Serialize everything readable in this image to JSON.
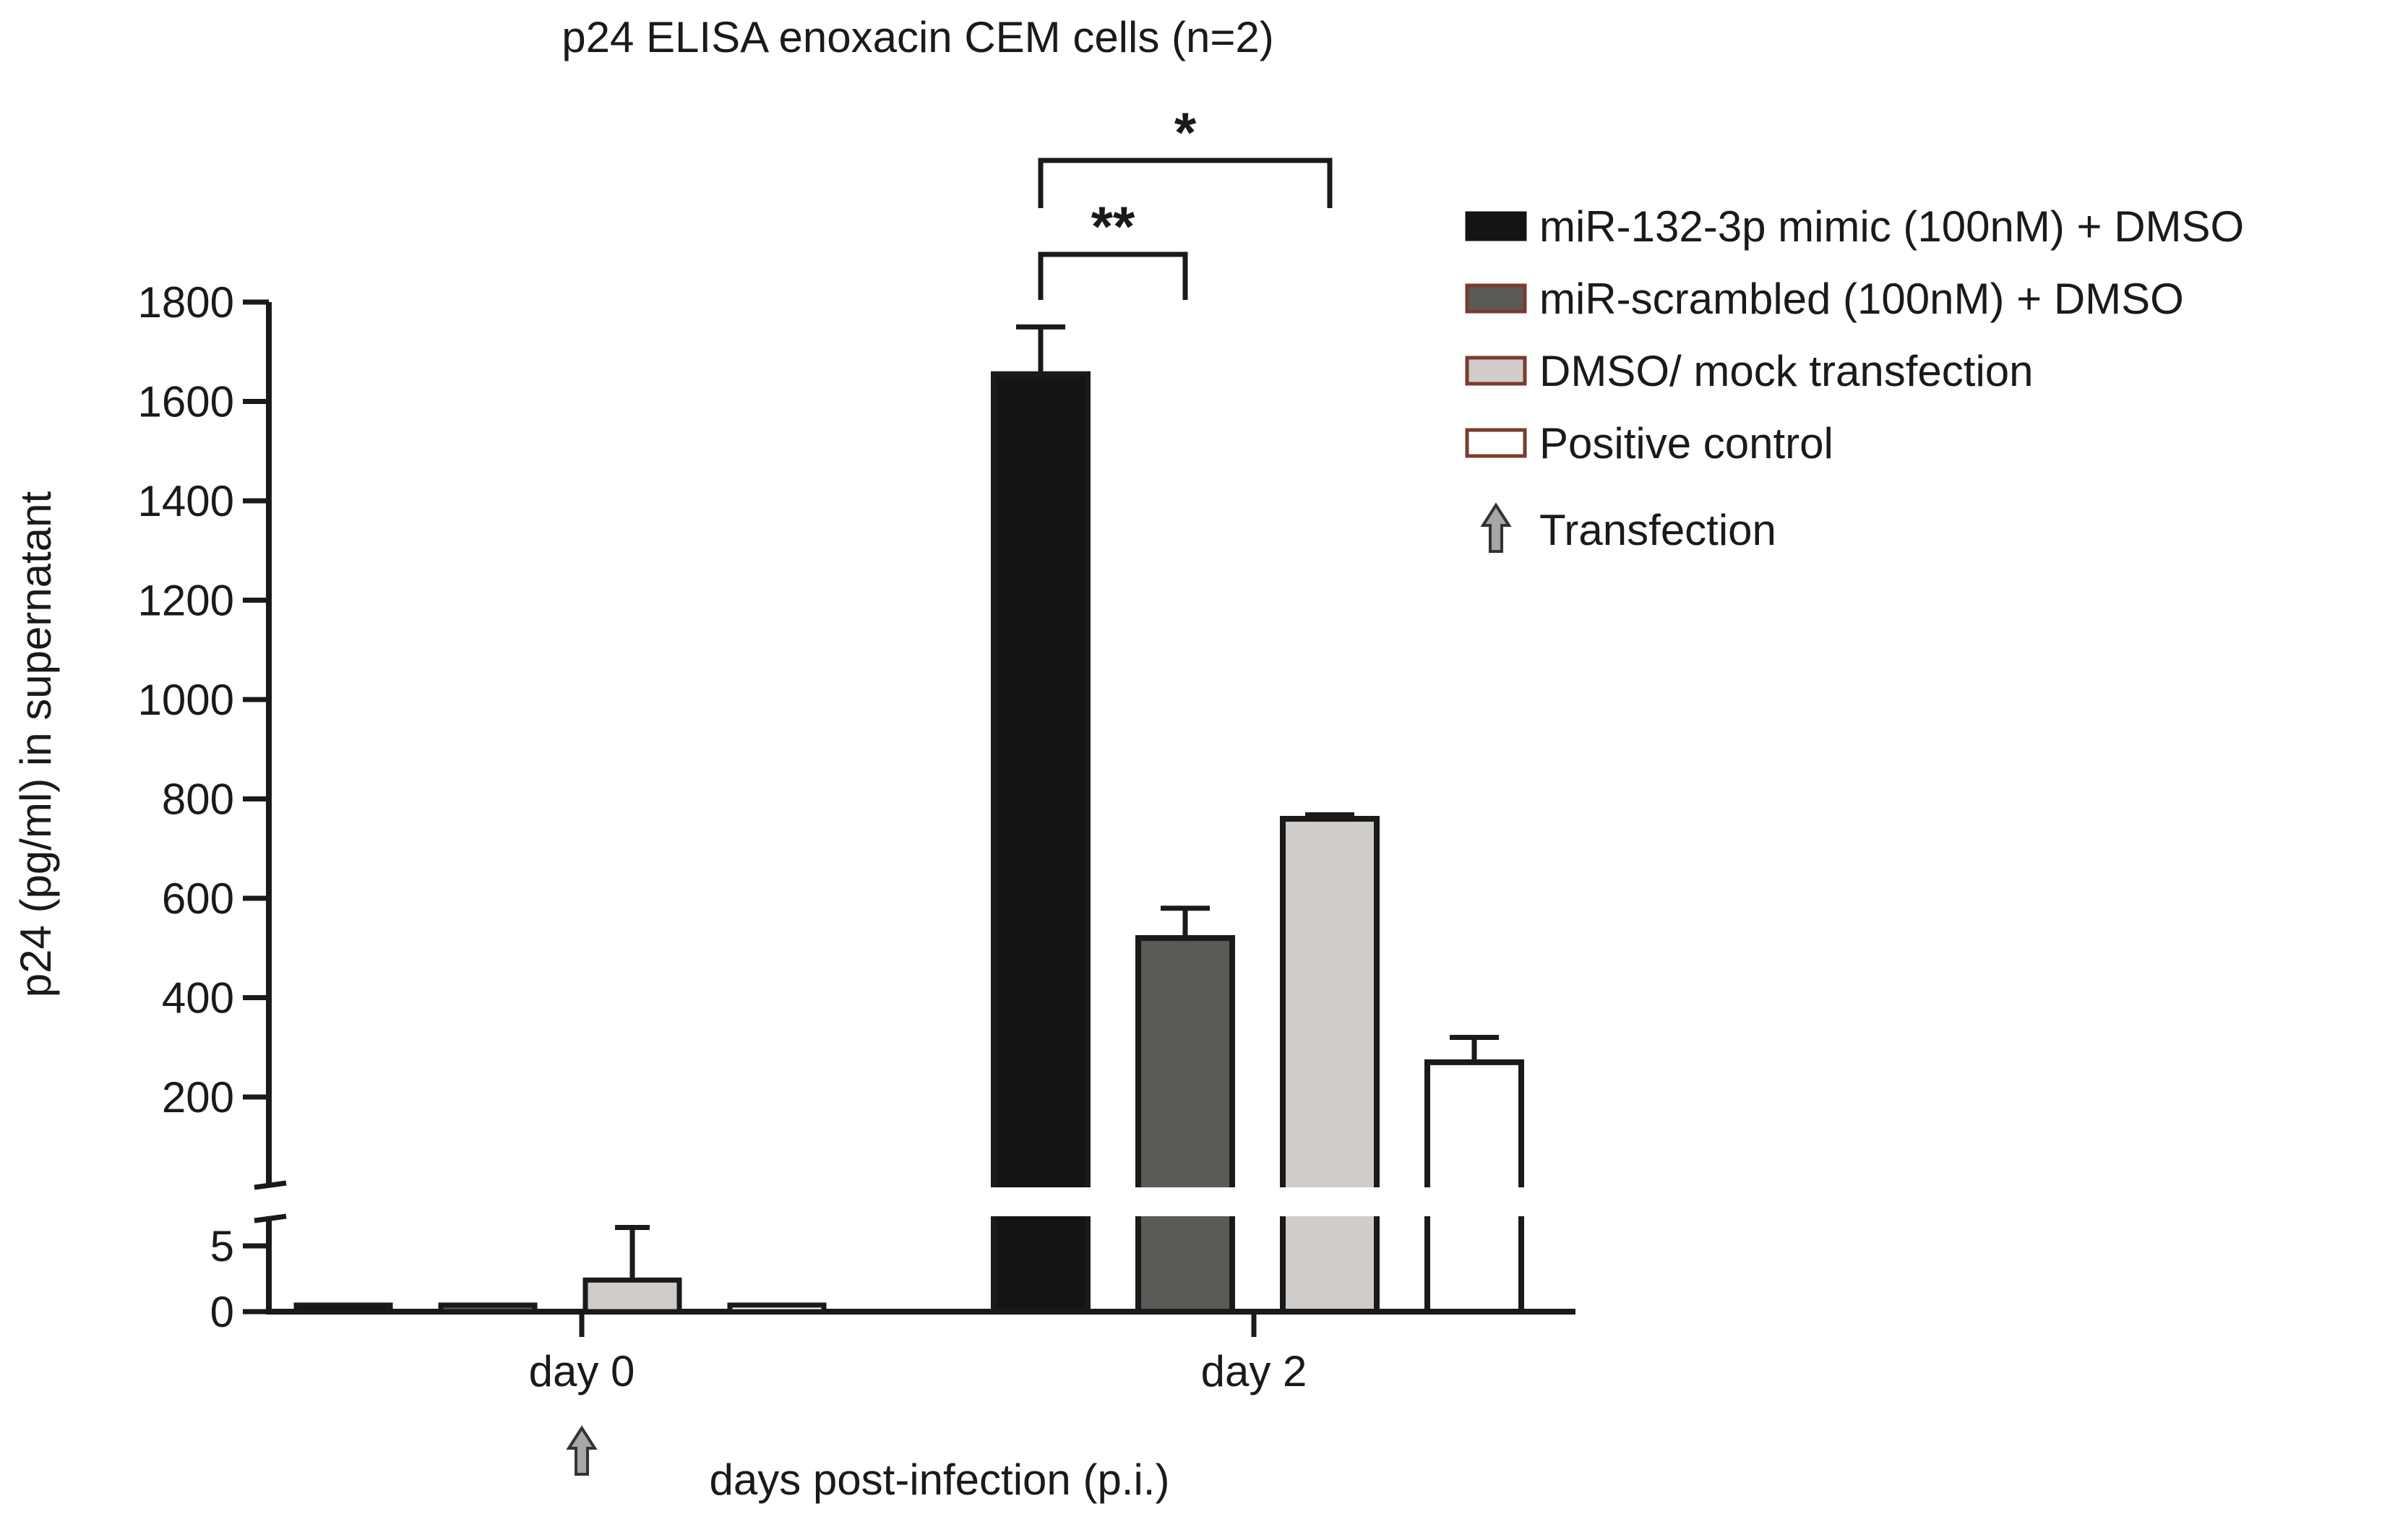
{
  "chart_data": {
    "type": "bar",
    "title": "p24 ELISA enoxacin CEM cells (n=2)",
    "xlabel": "days post-infection (p.i.)",
    "ylabel": "p24 (pg/ml) in supernatant",
    "categories": [
      "day 0",
      "day 2"
    ],
    "y_axis_broken": true,
    "upper_segment": {
      "ylim": [
        0,
        1800
      ],
      "ticks": [
        "200",
        "400",
        "600",
        "800",
        "1000",
        "1200",
        "1400",
        "1600",
        "1800"
      ]
    },
    "lower_segment": {
      "ylim": [
        0,
        7
      ],
      "ticks": [
        "0",
        "5"
      ]
    },
    "series": [
      {
        "name": "miR-132-3p mimic (100nM) + DMSO",
        "color": "#141414",
        "values": [
          0.5,
          1655
        ],
        "errors": [
          0,
          95
        ]
      },
      {
        "name": "miR-scrambled (100nM) + DMSO",
        "color": "#5c5a57",
        "values": [
          0.5,
          520
        ],
        "errors": [
          0,
          60
        ]
      },
      {
        "name": "DMSO/ mock transfection",
        "color": "#cfccc9",
        "values": [
          2.4,
          760
        ],
        "errors": [
          4,
          8
        ]
      },
      {
        "name": "Positive control",
        "color": "#ffffff",
        "values": [
          0.5,
          270
        ],
        "errors": [
          0,
          50
        ]
      }
    ],
    "significance": [
      {
        "label": "**",
        "from_series": 0,
        "to_series": 1,
        "category": "day 2"
      },
      {
        "label": "*",
        "from_series": 0,
        "to_series": 2,
        "category": "day 2"
      }
    ],
    "transfection": {
      "label": "Transfection",
      "category": "day 0"
    },
    "legend_position": "top-right"
  }
}
